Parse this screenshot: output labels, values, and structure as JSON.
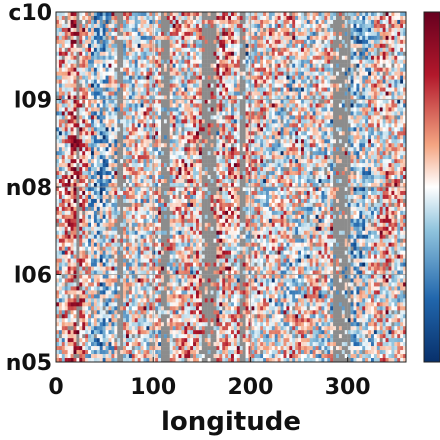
{
  "chart_data": {
    "type": "heatmap",
    "title": "",
    "xlabel": "longitude",
    "ylabel": "",
    "xlim": [
      0,
      360
    ],
    "x_ticks": [
      {
        "value": 0,
        "label": "0"
      },
      {
        "value": 100,
        "label": "100"
      },
      {
        "value": 200,
        "label": "200"
      },
      {
        "value": 300,
        "label": "300"
      }
    ],
    "y_ticks": [
      {
        "label": "c10"
      },
      {
        "label": "l09"
      },
      {
        "label": "n08"
      },
      {
        "label": "l06"
      },
      {
        "label": "n05"
      }
    ],
    "grid": true,
    "colormap": [
      "#08306b",
      "#2166ac",
      "#92c5de",
      "#ffffff",
      "#f4a582",
      "#b2182b",
      "#67001f"
    ],
    "missing_color": "#8c8c8c",
    "colorbar": {
      "position": "right",
      "tick_labels": []
    },
    "missing_longitude_bands": [
      {
        "lon": [
          20,
          24
        ]
      },
      {
        "lon": [
          62,
          70
        ]
      },
      {
        "lon": [
          108,
          118
        ]
      },
      {
        "lon": [
          150,
          166
        ]
      },
      {
        "lon": [
          188,
          196
        ]
      },
      {
        "lon": [
          285,
          302
        ]
      }
    ]
  }
}
